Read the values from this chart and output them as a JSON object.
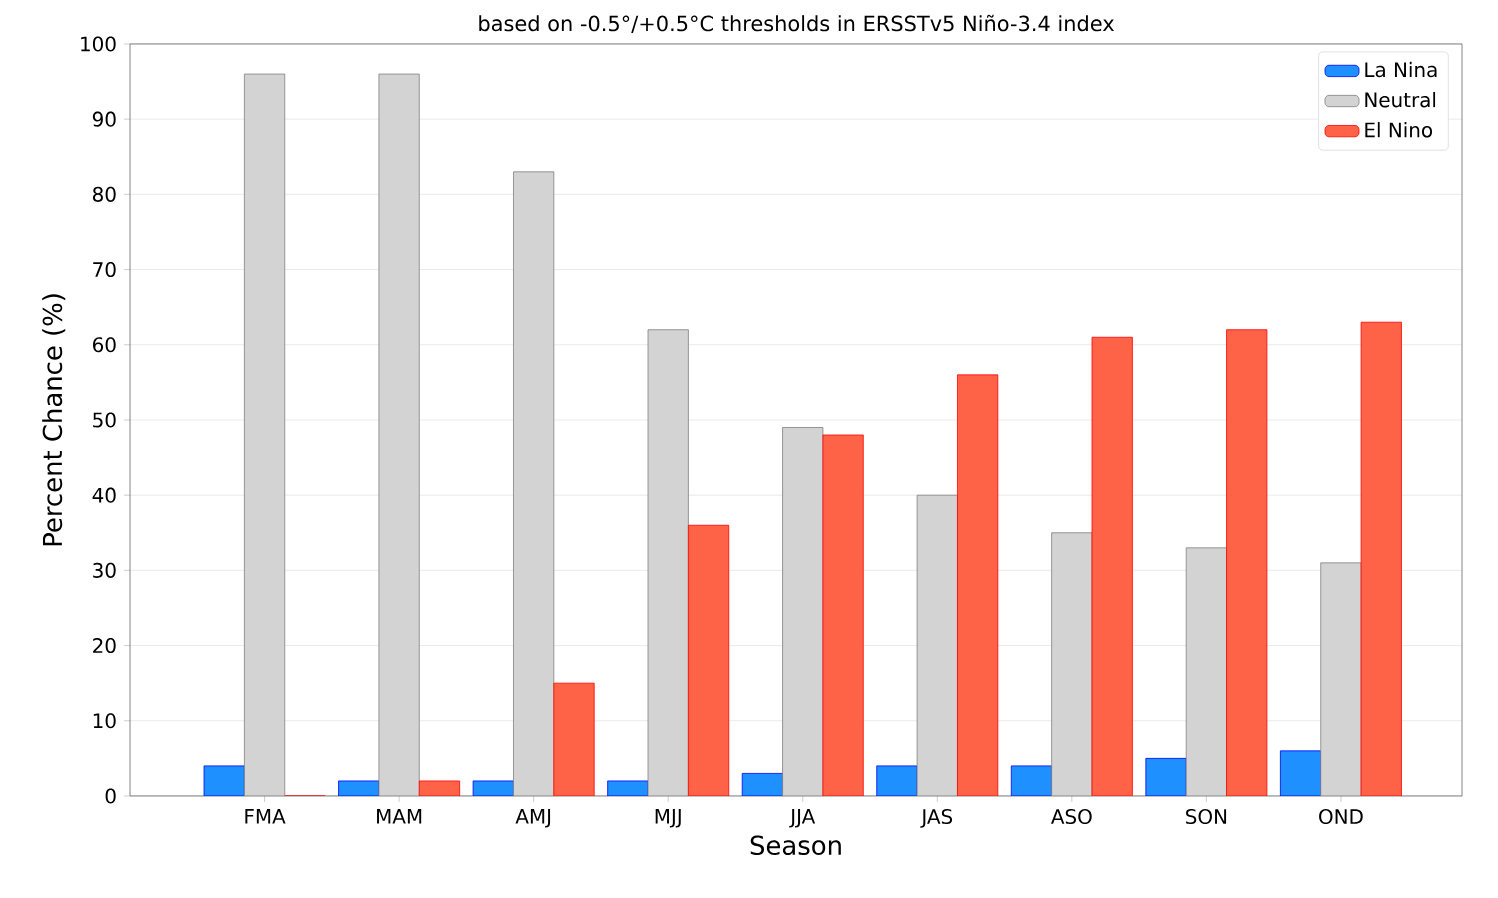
{
  "chart_data": {
    "type": "bar",
    "title": "based on -0.5°/+0.5°C thresholds in ERSSTv5 Niño-3.4 index",
    "xlabel": "Season",
    "ylabel": "Percent Chance (%)",
    "categories": [
      "FMA",
      "MAM",
      "AMJ",
      "MJJ",
      "JJA",
      "JAS",
      "ASO",
      "SON",
      "OND"
    ],
    "series": [
      {
        "name": "La Nina",
        "color": "#1e90ff",
        "values": [
          4,
          2,
          2,
          2,
          3,
          4,
          4,
          5,
          6
        ]
      },
      {
        "name": "Neutral",
        "color": "#d3d3d3",
        "values": [
          96,
          96,
          83,
          62,
          49,
          40,
          35,
          33,
          31
        ]
      },
      {
        "name": "El Nino",
        "color": "#ff6347",
        "values": [
          0,
          2,
          15,
          36,
          48,
          56,
          61,
          62,
          63
        ]
      }
    ],
    "ylim": [
      0,
      100
    ],
    "yticks": [
      0,
      10,
      20,
      30,
      40,
      50,
      60,
      70,
      80,
      90,
      100
    ],
    "grid": "y",
    "legend": "top right"
  }
}
